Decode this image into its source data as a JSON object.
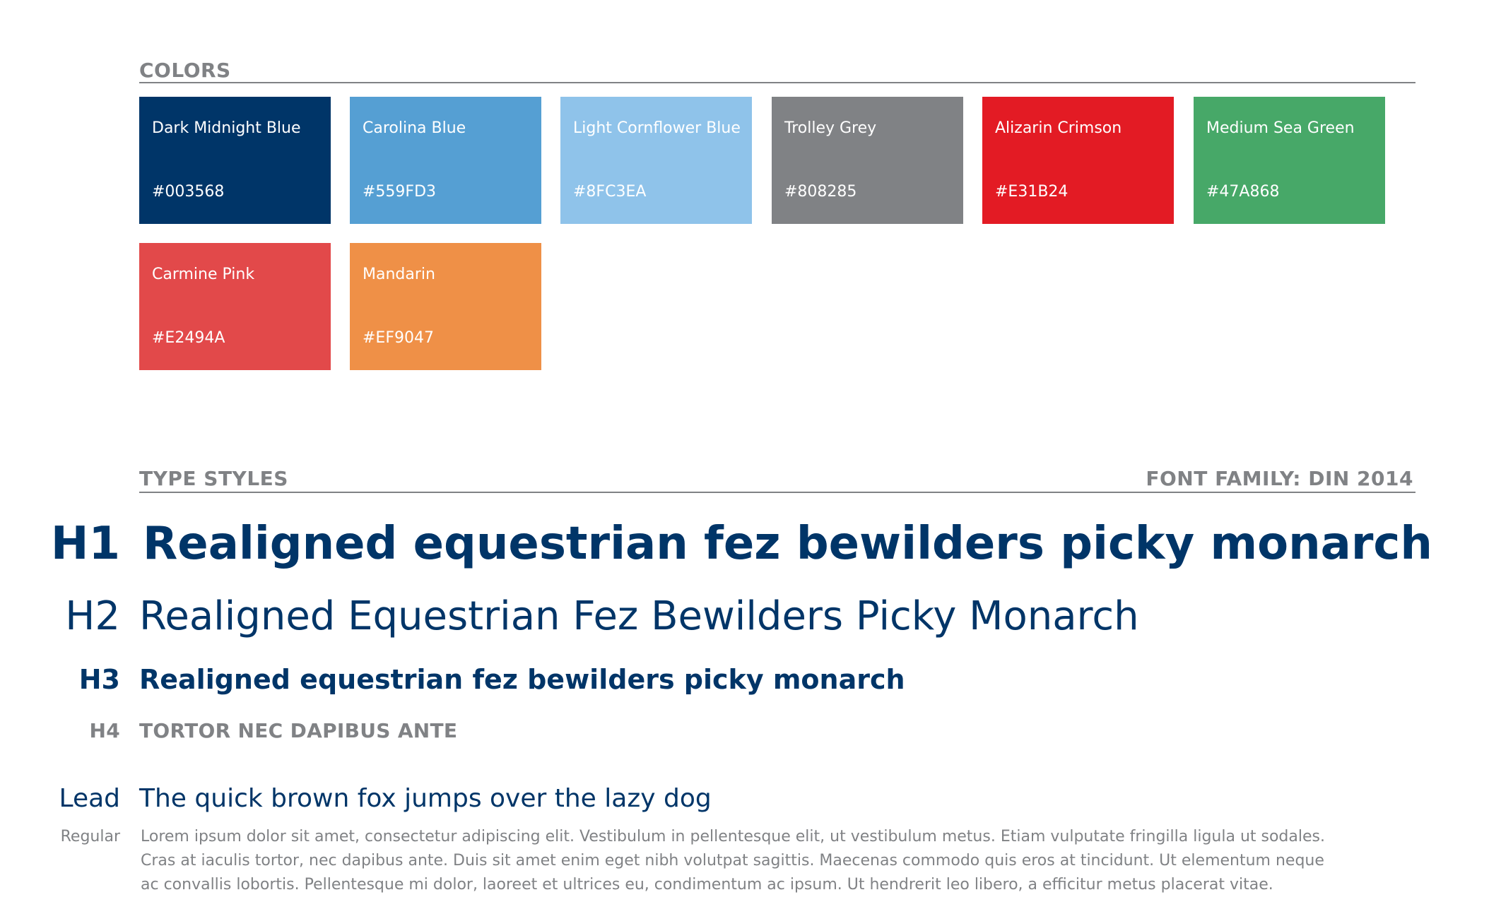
{
  "colors_section": {
    "title": "COLORS",
    "swatches": [
      {
        "name": "Dark Midnight Blue",
        "hex": "#003568",
        "color": "#003568"
      },
      {
        "name": "Carolina Blue",
        "hex": "#559FD3",
        "color": "#559FD3"
      },
      {
        "name": "Light Cornflower Blue",
        "hex": "#8FC3EA",
        "color": "#8FC3EA"
      },
      {
        "name": "Trolley Grey",
        "hex": "#808285",
        "color": "#808285"
      },
      {
        "name": "Alizarin Crimson",
        "hex": "#E31B24",
        "color": "#E31B24"
      },
      {
        "name": "Medium Sea Green",
        "hex": "#47A868",
        "color": "#47A868"
      },
      {
        "name": "Carmine Pink",
        "hex": "#E2494A",
        "color": "#E2494A"
      },
      {
        "name": "Mandarin",
        "hex": "#EF9047",
        "color": "#EF9047"
      }
    ]
  },
  "type_section": {
    "title": "TYPE STYLES",
    "font_family": "FONT FAMILY: DIN 2014",
    "styles": {
      "h1": {
        "label": "H1",
        "sample": "Realigned equestrian fez bewilders picky monarch"
      },
      "h2": {
        "label": "H2",
        "sample": "Realigned Equestrian Fez Bewilders Picky Monarch"
      },
      "h3": {
        "label": "H3",
        "sample": "Realigned equestrian fez bewilders picky monarch"
      },
      "h4": {
        "label": "H4",
        "sample": "TORTOR NEC DAPIBUS ANTE"
      },
      "lead": {
        "label": "Lead",
        "sample": "The quick brown fox jumps over the lazy dog"
      },
      "regular": {
        "label": "Regular",
        "sample": "Lorem ipsum dolor sit amet, consectetur adipiscing elit. Vestibulum in pellentesque elit, ut vestibulum metus. Etiam vulputate fringilla ligula ut sodales. Cras at iaculis tortor, nec dapibus ante. Duis sit amet enim eget nibh volutpat sagittis. Maecenas commodo quis eros at tincidunt. Ut elementum neque ac convallis lobortis. Pellentesque mi dolor, laoreet et ultrices eu, condimentum ac ipsum. Ut hendrerit leo libero, a efficitur metus placerat vitae."
      }
    }
  }
}
